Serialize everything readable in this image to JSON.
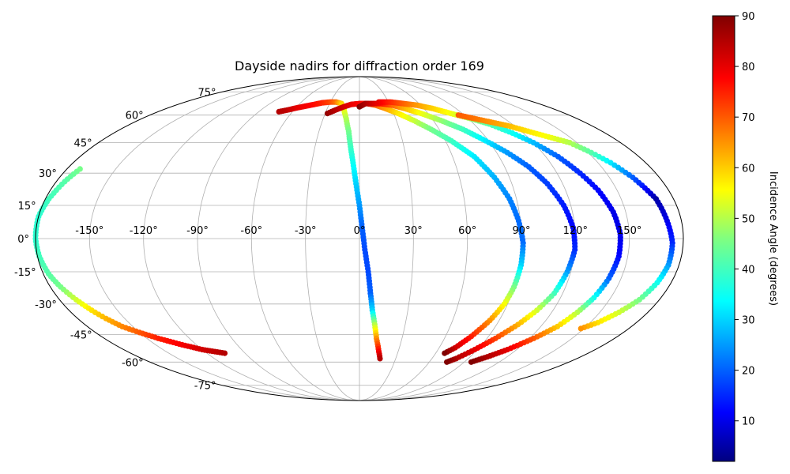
{
  "chart_data": {
    "type": "scatter",
    "projection": "mollweide",
    "title": "Dayside nadirs for diffraction order 169",
    "xlabel": "",
    "ylabel": "",
    "xticks": [
      "-150°",
      "-120°",
      "-90°",
      "-60°",
      "-30°",
      "0°",
      "30°",
      "60°",
      "90°",
      "120°",
      "150°"
    ],
    "yticks": [
      "-75°",
      "-60°",
      "-45°",
      "-30°",
      "-15°",
      "0°",
      "15°",
      "30°",
      "45°",
      "60°",
      "75°"
    ],
    "xlim": [
      -180,
      180
    ],
    "ylim": [
      -90,
      90
    ],
    "grid": true,
    "colormap": "jet",
    "colorbar": {
      "label": "Incidence Angle (degrees)",
      "range": [
        2,
        90
      ],
      "ticks": [
        "10",
        "20",
        "30",
        "40",
        "50",
        "60",
        "70",
        "80",
        "90"
      ]
    },
    "series": [
      {
        "points": [
          [
            -72,
            62,
            85
          ],
          [
            -66,
            63,
            84
          ],
          [
            -58,
            64.5,
            80
          ],
          [
            -48,
            66,
            78
          ],
          [
            -38,
            67.5,
            75
          ],
          [
            -30,
            68,
            72
          ],
          [
            -24,
            68,
            68
          ],
          [
            -18,
            67,
            60
          ],
          [
            -14,
            63,
            55
          ],
          [
            -11,
            58,
            50
          ],
          [
            -8,
            51,
            45
          ],
          [
            -6,
            43,
            40
          ],
          [
            -4,
            35,
            35
          ],
          [
            -2,
            25,
            30
          ],
          [
            0,
            15,
            25
          ],
          [
            1.5,
            5,
            20
          ],
          [
            3,
            -5,
            18
          ],
          [
            5,
            -15,
            18
          ],
          [
            6.5,
            -25,
            20
          ],
          [
            8,
            -33,
            30
          ],
          [
            10,
            -40,
            50
          ],
          [
            12,
            -47,
            65
          ],
          [
            15,
            -54,
            78
          ],
          [
            17,
            -58,
            85
          ]
        ]
      },
      {
        "points": [
          [
            -28,
            61,
            88
          ],
          [
            -22,
            63,
            85
          ],
          [
            -15,
            65,
            82
          ],
          [
            -8,
            66.5,
            80
          ],
          [
            0,
            67,
            78
          ],
          [
            8,
            67,
            75
          ],
          [
            16,
            66,
            70
          ],
          [
            24,
            64,
            65
          ],
          [
            34,
            61,
            58
          ],
          [
            44,
            57,
            52
          ],
          [
            54,
            52,
            45
          ],
          [
            64,
            46,
            40
          ],
          [
            74,
            38,
            32
          ],
          [
            81,
            28,
            27
          ],
          [
            86,
            18,
            23
          ],
          [
            89,
            8,
            21
          ],
          [
            91,
            -2,
            21
          ],
          [
            91,
            -12,
            30
          ],
          [
            90,
            -22,
            45
          ],
          [
            88,
            -30,
            55
          ],
          [
            84,
            -38,
            65
          ],
          [
            78,
            -46,
            75
          ],
          [
            72,
            -52,
            82
          ],
          [
            67,
            -55,
            90
          ]
        ]
      },
      {
        "points": [
          [
            0,
            65,
            90
          ],
          [
            6,
            67,
            86
          ],
          [
            14,
            67,
            82
          ],
          [
            22,
            67,
            78
          ],
          [
            32,
            66,
            70
          ],
          [
            42,
            64,
            63
          ],
          [
            54,
            61,
            55
          ],
          [
            66,
            57,
            48
          ],
          [
            78,
            52,
            40
          ],
          [
            88,
            46,
            32
          ],
          [
            97,
            40,
            25
          ],
          [
            105,
            33,
            20
          ],
          [
            111,
            25,
            17
          ],
          [
            116,
            15,
            14
          ],
          [
            119,
            5,
            12
          ],
          [
            120,
            -5,
            15
          ],
          [
            118,
            -15,
            25
          ],
          [
            115,
            -25,
            40
          ],
          [
            110,
            -33,
            52
          ],
          [
            104,
            -40,
            62
          ],
          [
            96,
            -47,
            72
          ],
          [
            88,
            -53,
            80
          ],
          [
            80,
            -58,
            85
          ],
          [
            75,
            -60,
            90
          ]
        ]
      },
      {
        "points": [
          [
            20,
            68,
            80
          ],
          [
            32,
            68,
            75
          ],
          [
            44,
            67,
            70
          ],
          [
            56,
            66,
            65
          ],
          [
            68,
            64,
            60
          ],
          [
            80,
            61,
            55
          ],
          [
            92,
            58,
            48
          ],
          [
            102,
            55,
            42
          ],
          [
            112,
            50,
            35
          ],
          [
            120,
            45,
            28
          ],
          [
            128,
            38,
            20
          ],
          [
            134,
            30,
            15
          ],
          [
            139,
            22,
            12
          ],
          [
            143,
            12,
            10
          ],
          [
            145,
            2,
            10
          ],
          [
            145,
            -8,
            12
          ],
          [
            143,
            -18,
            20
          ],
          [
            140,
            -27,
            35
          ],
          [
            136,
            -34,
            50
          ],
          [
            131,
            -41,
            60
          ],
          [
            123,
            -47,
            70
          ],
          [
            113,
            -53,
            80
          ],
          [
            104,
            -57,
            85
          ],
          [
            96,
            -60,
            90
          ]
        ]
      },
      {
        "points": [
          [
            85,
            60,
            70
          ],
          [
            95,
            58,
            68
          ],
          [
            105,
            56,
            65
          ],
          [
            115,
            54,
            62
          ],
          [
            125,
            51,
            58
          ],
          [
            135,
            48,
            55
          ],
          [
            145,
            45,
            50
          ],
          [
            152,
            40,
            42
          ],
          [
            158,
            35,
            32
          ],
          [
            164,
            28,
            20
          ],
          [
            170,
            18,
            5
          ],
          [
            172,
            8,
            10
          ],
          [
            174,
            -2,
            15
          ],
          [
            174,
            -12,
            25
          ],
          [
            172,
            -20,
            35
          ],
          [
            168,
            -28,
            45
          ],
          [
            162,
            -34,
            52
          ],
          [
            155,
            -39,
            58
          ],
          [
            148,
            -42,
            65
          ]
        ]
      },
      {
        "points": [
          [
            -172,
            32,
            45
          ],
          [
            -175,
            26,
            42
          ],
          [
            -178,
            18,
            40
          ],
          [
            -180,
            10,
            38
          ],
          [
            -180,
            0,
            38
          ],
          [
            -179,
            -8,
            40
          ],
          [
            -177,
            -16,
            42
          ],
          [
            -174,
            -22,
            45
          ],
          [
            -170,
            -28,
            52
          ],
          [
            -166,
            -33,
            58
          ],
          [
            -162,
            -37,
            62
          ],
          [
            -157,
            -41,
            66
          ],
          [
            -150,
            -44,
            70
          ],
          [
            -142,
            -47,
            75
          ],
          [
            -132,
            -50,
            78
          ],
          [
            -120,
            -53,
            82
          ],
          [
            -106,
            -55,
            85
          ]
        ]
      }
    ]
  }
}
